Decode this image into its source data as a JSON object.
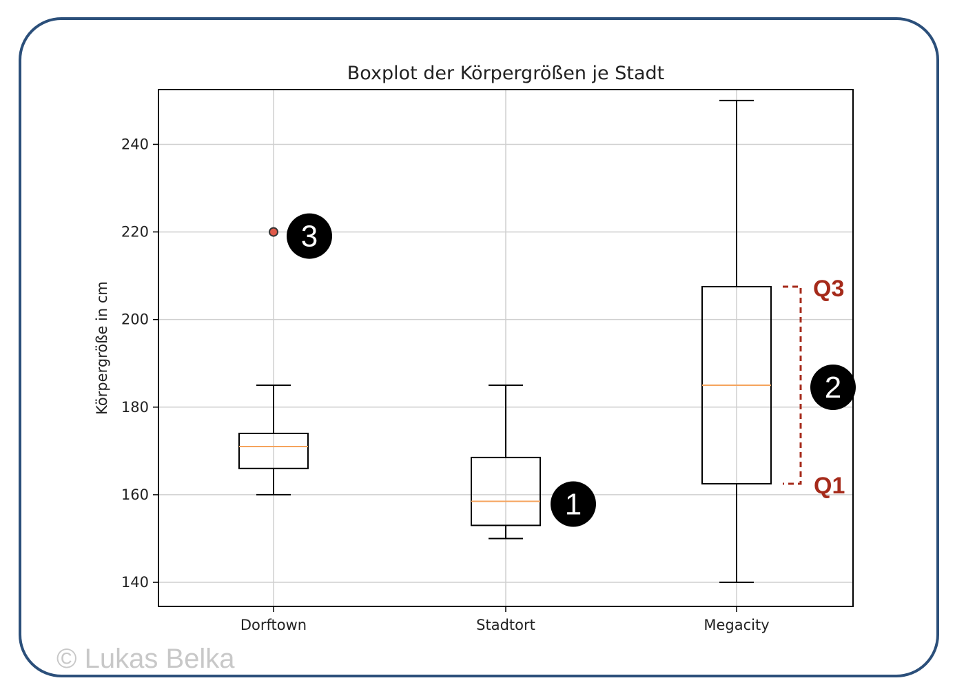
{
  "chart_data": {
    "type": "box",
    "title": "Boxplot der Körpergrößen je Stadt",
    "ylabel": "Körpergröße in cm",
    "xlabel": "",
    "ylim": [
      134.5,
      252.5
    ],
    "yticks": [
      140,
      160,
      180,
      200,
      220,
      240
    ],
    "grid": true,
    "categories": [
      "Dorftown",
      "Stadtort",
      "Megacity"
    ],
    "boxes": [
      {
        "category": "Dorftown",
        "whisker_low": 160,
        "q1": 166,
        "median": 171,
        "q3": 174,
        "whisker_high": 185,
        "outliers": [
          220
        ]
      },
      {
        "category": "Stadtort",
        "whisker_low": 150,
        "q1": 153,
        "median": 158.5,
        "q3": 168.5,
        "whisker_high": 185,
        "outliers": []
      },
      {
        "category": "Megacity",
        "whisker_low": 140,
        "q1": 162.5,
        "median": 185,
        "q3": 207.5,
        "whisker_high": 250,
        "outliers": []
      }
    ],
    "annotations": [
      {
        "id": "badge-1",
        "text": "1",
        "target": "Stadtort median"
      },
      {
        "id": "badge-2",
        "text": "2",
        "target": "Megacity interquartile range"
      },
      {
        "id": "badge-3",
        "text": "3",
        "target": "Dorftown outlier"
      },
      {
        "id": "q3",
        "text": "Q3"
      },
      {
        "id": "q1",
        "text": "Q1"
      }
    ],
    "colors": {
      "box": "#000000",
      "median": "#f5a35c",
      "grid": "#cfcfcf",
      "outlier_fill": "#e05a4a",
      "annotation": "#a52a1a",
      "badge": "#000000"
    }
  },
  "copyright": "© Lukas Belka"
}
